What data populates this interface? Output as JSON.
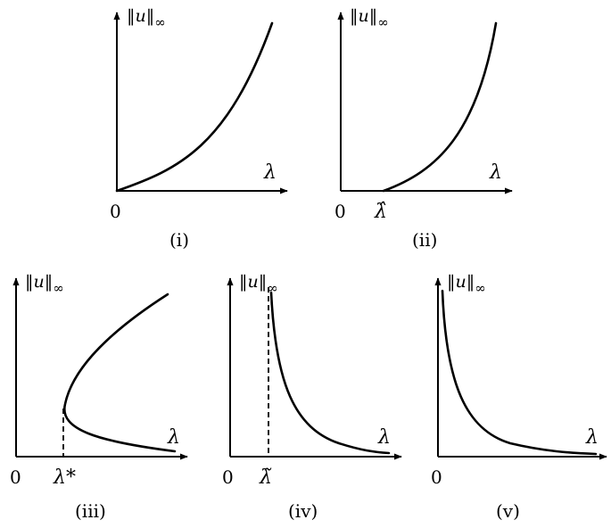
{
  "panels": [
    {
      "caption": "(i)",
      "y_label": "‖u‖",
      "y_label_sub": "∞",
      "x_label": "λ",
      "origin_label": "0",
      "special_label": ""
    },
    {
      "caption": "(ii)",
      "y_label": "‖u‖",
      "y_label_sub": "∞",
      "x_label": "λ",
      "origin_label": "0",
      "special_label": "λ̂"
    },
    {
      "caption": "(iii)",
      "y_label": "‖u‖",
      "y_label_sub": "∞",
      "x_label": "λ",
      "origin_label": "0",
      "special_label": "λ*"
    },
    {
      "caption": "(iv)",
      "y_label": "‖u‖",
      "y_label_sub": "∞",
      "x_label": "λ",
      "origin_label": "0",
      "special_label": "λ̃"
    },
    {
      "caption": "(v)",
      "y_label": "‖u‖",
      "y_label_sub": "∞",
      "x_label": "λ",
      "origin_label": "0",
      "special_label": ""
    }
  ]
}
